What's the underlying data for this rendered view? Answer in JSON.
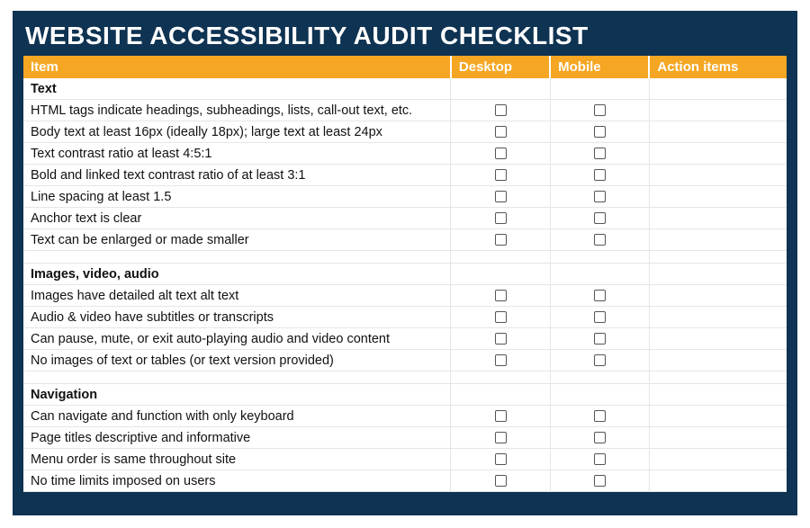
{
  "title": "WEBSITE ACCESSIBILITY AUDIT CHECKLIST",
  "columns": {
    "item": "Item",
    "desktop": "Desktop",
    "mobile": "Mobile",
    "action": "Action items"
  },
  "colors": {
    "panel_bg": "#0f3352",
    "header_bg": "#f5a623",
    "header_text": "#ffffff",
    "title_text": "#ffffff",
    "cell_text": "#111111",
    "grid": "#e6e6e6",
    "checkbox_border": "#555555"
  },
  "sections": [
    {
      "name": "Text",
      "items": [
        "HTML tags indicate headings, subheadings, lists, call-out text, etc.",
        "Body text at least 16px (ideally 18px); large text at least 24px",
        "Text contrast ratio at least 4:5:1",
        "Bold and linked text contrast ratio of at least 3:1",
        "Line spacing at least 1.5",
        "Anchor text is clear",
        "Text can be enlarged or made smaller"
      ]
    },
    {
      "name": "Images, video, audio",
      "items": [
        "Images have detailed alt text alt text",
        "Audio & video have subtitles or transcripts",
        "Can pause, mute, or exit auto-playing audio and video content",
        "No images of text or tables (or text version provided)"
      ]
    },
    {
      "name": "Navigation",
      "items": [
        "Can navigate and function with only keyboard",
        "Page titles descriptive and informative",
        "Menu order is same throughout site",
        "No time limits imposed on users"
      ]
    }
  ]
}
